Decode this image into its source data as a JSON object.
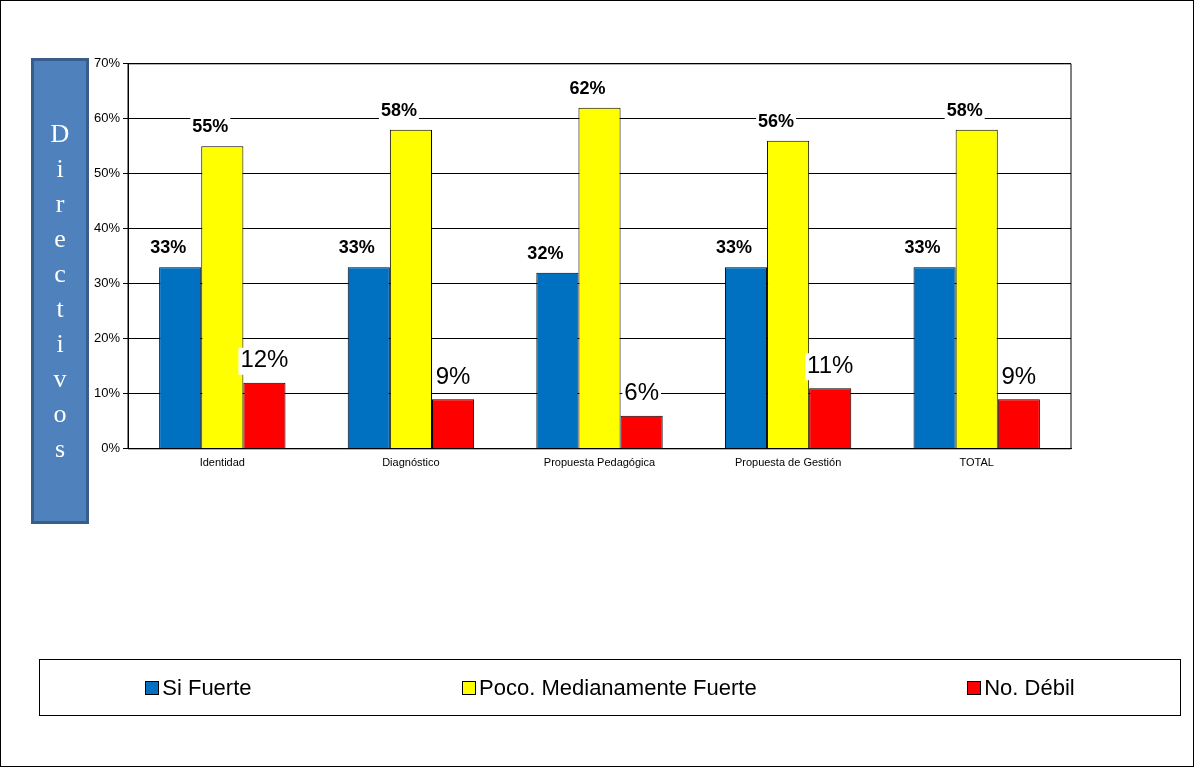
{
  "chart_data": {
    "type": "bar",
    "ylabel": "Directivos",
    "categories": [
      "Identidad",
      "Diagnóstico",
      "Propuesta Pedagógica",
      "Propuesta de Gestión",
      "TOTAL"
    ],
    "series": [
      {
        "name": "Si Fuerte",
        "color": "#0070c0",
        "values": [
          33,
          33,
          32,
          33,
          33
        ],
        "value_labels": [
          "33%",
          "33%",
          "32%",
          "33%",
          "33%"
        ]
      },
      {
        "name": "Poco. Medianamente Fuerte",
        "color": "#ffff00",
        "values": [
          55,
          58,
          62,
          56,
          58
        ],
        "value_labels": [
          "55%",
          "58%",
          "62%",
          "56%",
          "58%"
        ]
      },
      {
        "name": "No. Débil",
        "color": "#ff0000",
        "values": [
          12,
          9,
          6,
          11,
          9
        ],
        "value_labels": [
          "12%",
          "9%",
          "6%",
          "11%",
          "9%"
        ]
      }
    ],
    "ylim": [
      0,
      70
    ],
    "yticks": [
      {
        "value": 0,
        "label": "0%"
      },
      {
        "value": 10,
        "label": "10%"
      },
      {
        "value": 20,
        "label": "20%"
      },
      {
        "value": 30,
        "label": "30%"
      },
      {
        "value": 40,
        "label": "40%"
      },
      {
        "value": 50,
        "label": "50%"
      },
      {
        "value": 60,
        "label": "60%"
      },
      {
        "value": 70,
        "label": "70%"
      }
    ],
    "grid": "y",
    "legend": "bottom"
  }
}
